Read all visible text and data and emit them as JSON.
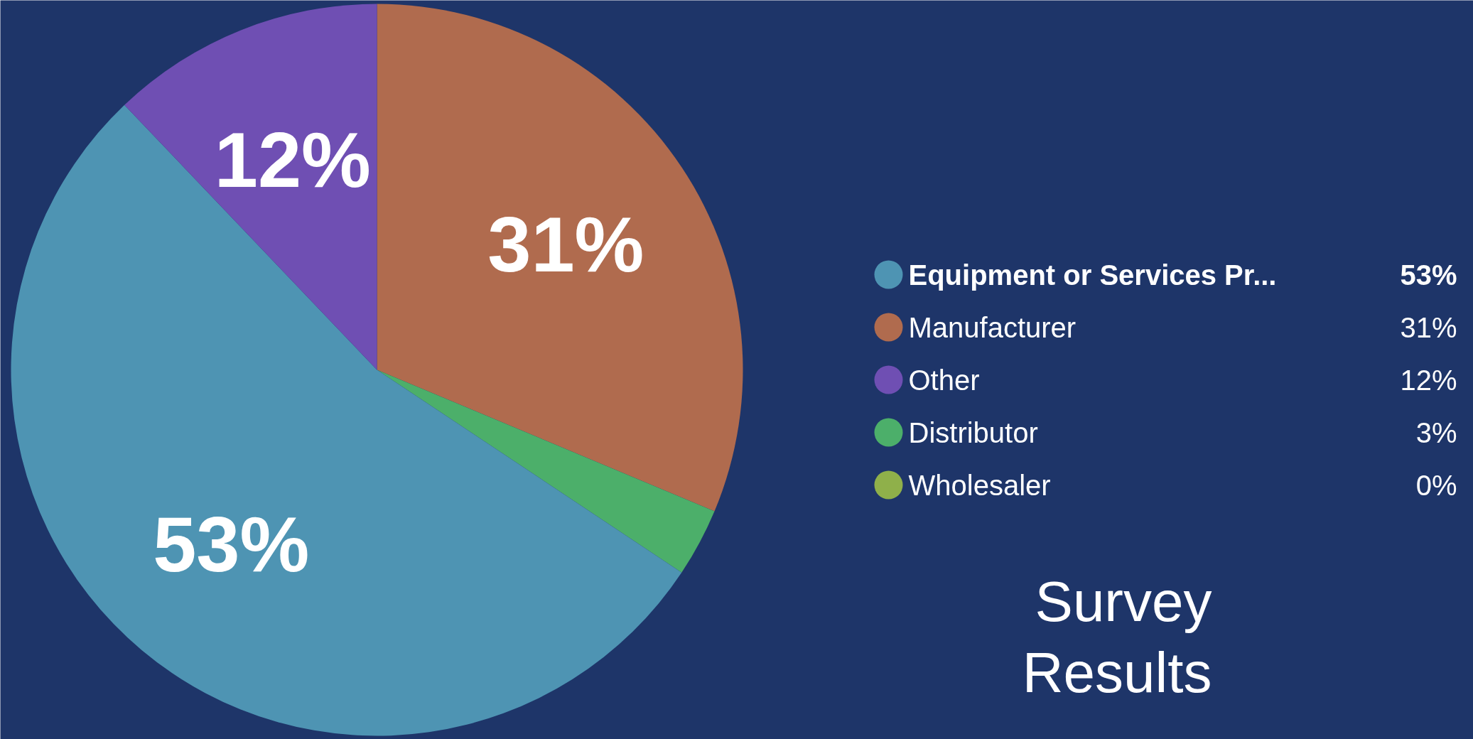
{
  "chart_data": {
    "type": "pie",
    "title": "Survey Results",
    "categories": [
      "Manufacturer",
      "Distributor",
      "Wholesaler",
      "Equipment or Services Pr...",
      "Other"
    ],
    "values": [
      31,
      3,
      0,
      53,
      12
    ],
    "colors": [
      "#b06b4e",
      "#4caf6a",
      "#8fb04a",
      "#4e94b3",
      "#6f4fb3"
    ],
    "value_labels": [
      "31%",
      "3%",
      "0%",
      "53%",
      "12%"
    ],
    "legend": "right"
  }
}
